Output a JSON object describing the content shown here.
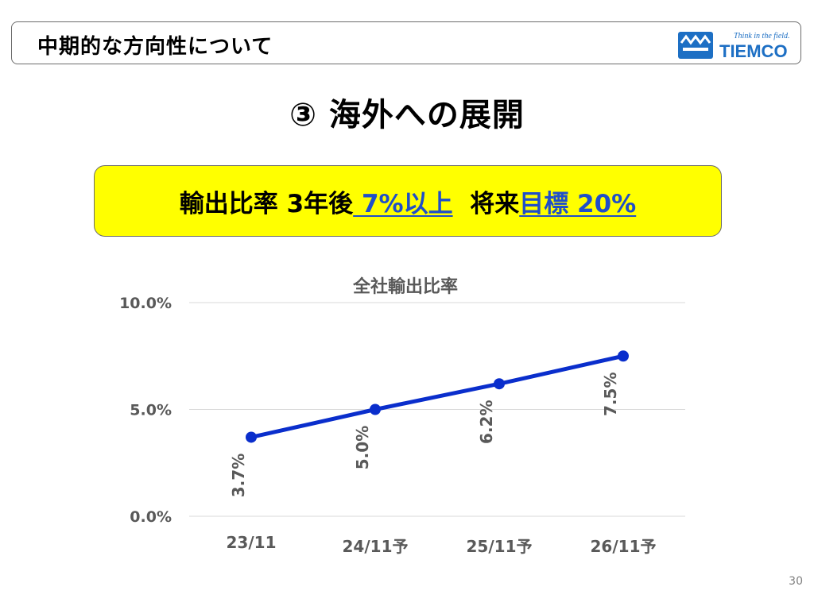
{
  "header": {
    "title": "中期的な方向性について"
  },
  "logo": {
    "tagline": "Think in the field.",
    "name": "TIEMCO"
  },
  "main_title": "③ 海外への展開",
  "target": {
    "prefix": "輸出比率 3年後",
    "highlight1": " 7%以上",
    "middle": "  将来",
    "highlight2": "目標 20%"
  },
  "page_number": "30",
  "colors": {
    "accent": "#0a2ecc",
    "target_bg": "#ffff00",
    "link": "#1f4ec9",
    "logo": "#1d6fc4"
  },
  "chart_data": {
    "type": "line",
    "title": "全社輸出比率",
    "categories": [
      "23/11",
      "24/11予",
      "25/11予",
      "26/11予"
    ],
    "series": [
      {
        "values": [
          3.7,
          5.0,
          6.2,
          7.5
        ]
      }
    ],
    "data_labels": [
      "3.7%",
      "5.0%",
      "6.2%",
      "7.5%"
    ],
    "y_ticks": [
      "0.0%",
      "5.0%",
      "10.0%"
    ],
    "ylim": [
      0,
      10
    ],
    "grid": true,
    "xlabel": "",
    "ylabel": ""
  }
}
